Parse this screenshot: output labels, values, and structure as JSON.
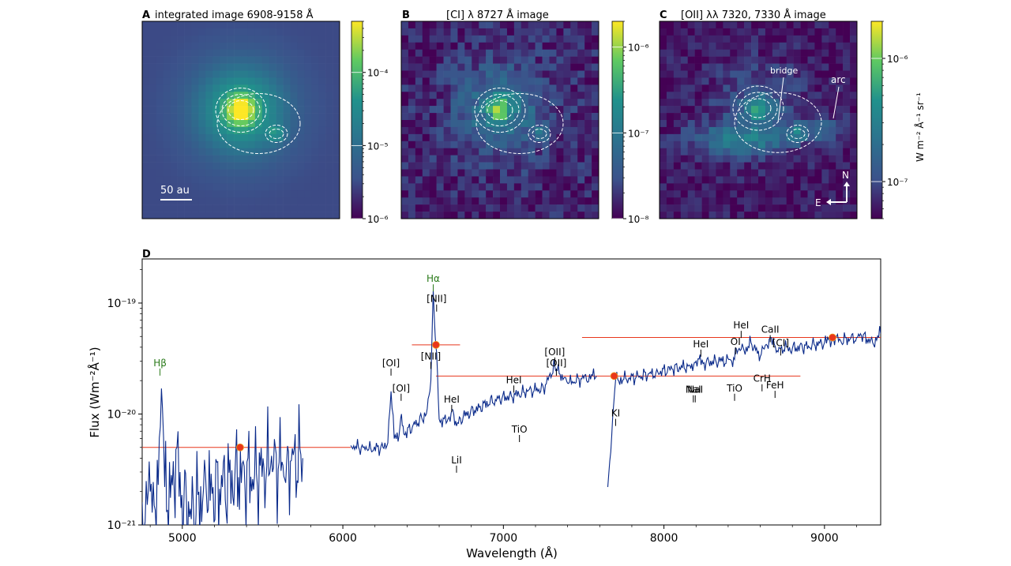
{
  "chart_data": [
    {
      "type": "heatmap",
      "panel_letter": "A",
      "title": "integrated image 6908-9158 Å",
      "colormap": "viridis",
      "colorbar": {
        "scale": "log",
        "range": [
          1e-06,
          0.0005
        ],
        "tick_labels": [
          "10⁻⁴",
          "10⁻⁵",
          "10⁻⁶"
        ],
        "tick_values": [
          0.0001,
          1e-05,
          1e-06
        ]
      },
      "sources": [
        {
          "name": "primary",
          "relative_peak": 1.0
        },
        {
          "name": "companion",
          "relative_peak": 0.8
        }
      ],
      "annotations": [
        "50 au"
      ]
    },
    {
      "type": "heatmap",
      "panel_letter": "B",
      "title": "[CI] λ 8727 Å image",
      "colormap": "viridis",
      "colorbar": {
        "scale": "log",
        "range": [
          1e-08,
          2e-06
        ],
        "tick_labels": [
          "10⁻⁶",
          "10⁻⁷",
          "10⁻⁸"
        ],
        "tick_values": [
          1e-06,
          1e-07,
          1e-08
        ]
      },
      "sources": [
        {
          "name": "primary",
          "relative_peak": 1.0
        },
        {
          "name": "companion",
          "relative_peak": 0.85
        }
      ]
    },
    {
      "type": "heatmap",
      "panel_letter": "C",
      "title": "[OII] λλ 7320, 7330 Å image",
      "colormap": "viridis",
      "colorbar": {
        "scale": "log",
        "range": [
          5e-08,
          2e-06
        ],
        "tick_labels": [
          "10⁻⁶",
          "10⁻⁷"
        ],
        "tick_values": [
          1e-06,
          1e-07
        ],
        "label": "W m⁻² Å⁻¹ sr⁻¹"
      },
      "sources": [
        {
          "name": "primary",
          "relative_peak": 1.0
        },
        {
          "name": "companion",
          "relative_peak": 0.85
        }
      ],
      "annotations": [
        "bridge",
        "arc"
      ],
      "compass": {
        "north": "N",
        "east": "E"
      }
    },
    {
      "type": "line",
      "panel_letter": "D",
      "xlabel": "Wavelength (Å)",
      "ylabel": "Flux (Wm⁻²Å⁻¹)",
      "xlim": [
        4750,
        9350
      ],
      "ylim": [
        1e-21,
        2.5e-19
      ],
      "yscale": "log",
      "x_ticks": [
        5000,
        6000,
        7000,
        8000,
        9000
      ],
      "x_tick_labels": [
        "5000",
        "6000",
        "7000",
        "8000",
        "9000"
      ],
      "y_ticks": [
        1e-21,
        1e-20,
        1e-19
      ],
      "y_tick_labels": [
        "10⁻²¹",
        "10⁻²⁰",
        "10⁻¹⁹"
      ],
      "series": [
        {
          "color": "#0a2a8a",
          "segments": [
            {
              "x": [
                4750,
                4800,
                4850,
                4870,
                4890,
                4950,
                4960,
                4980,
                5050,
                5150,
                5250,
                5350,
                5450,
                5550,
                5650,
                5750
              ],
              "y": [
                1.6e-21,
                2e-21,
                2.3e-21,
                1.7e-20,
                2.2e-21,
                1.9e-21,
                4.8e-21,
                1.8e-21,
                1.4e-21,
                1.9e-21,
                2.2e-21,
                2.7e-21,
                2.8e-21,
                3.4e-21,
                3.7e-21,
                4e-21
              ]
            },
            {
              "x": [
                6050,
                6150,
                6250,
                6280,
                6300,
                6320,
                6350,
                6365,
                6380,
                6450,
                6520,
                6548,
                6563,
                6575,
                6584,
                6600,
                6650,
                6680,
                6708,
                6750,
                6850,
                6950,
                7050,
                7150,
                7250,
                7320,
                7330,
                7400,
                7500,
                7580
              ],
              "y": [
                5.2e-21,
                4.8e-21,
                5e-21,
                5.5e-21,
                1.6e-20,
                6e-21,
                6.4e-21,
                1e-20,
                6.6e-21,
                8e-21,
                1e-20,
                2e-20,
                1.3e-19,
                5e-20,
                3.6e-20,
                9e-21,
                8.6e-21,
                1.1e-20,
                7.8e-21,
                9.5e-21,
                1.15e-20,
                1.35e-20,
                1.45e-20,
                1.6e-20,
                1.7e-20,
                2.7e-20,
                2.5e-20,
                1.9e-20,
                2.1e-20,
                2.2e-20
              ]
            },
            {
              "x": [
                7650,
                7700,
                7750,
                7850,
                7950,
                8050,
                8150,
                8185,
                8200,
                8250,
                8350,
                8440,
                8450,
                8500,
                8542,
                8600,
                8662,
                8700,
                8727,
                8800,
                8900,
                9000,
                9050,
                9100,
                9200,
                9230,
                9300,
                9350
              ],
              "y": [
                2.2e-21,
                2.1e-20,
                2.05e-20,
                2.2e-20,
                2.35e-20,
                2.55e-20,
                2.7e-20,
                2.75e-20,
                3e-20,
                2.9e-20,
                3e-20,
                3.1e-20,
                3.9e-20,
                3.7e-20,
                4.4e-20,
                3.3e-20,
                4.9e-20,
                3.6e-20,
                3.9e-20,
                3.9e-20,
                4.1e-20,
                4.4e-20,
                4.7e-20,
                4.6e-20,
                4.9e-20,
                5.1e-20,
                4.4e-20,
                5.3e-20
              ]
            }
          ]
        }
      ],
      "photometry": {
        "color": "#e8361c",
        "points": [
          {
            "x": 5360,
            "y": 5e-21,
            "xerr_low": 4750,
            "xerr_high": 6050
          },
          {
            "x": 6580,
            "y": 4.2e-20,
            "xerr_low": 6430,
            "xerr_high": 6730
          },
          {
            "x": 7690,
            "y": 2.2e-20,
            "xerr_low": 6580,
            "xerr_high": 8850
          },
          {
            "x": 9050,
            "y": 4.9e-20,
            "xerr_low": 7490,
            "xerr_high": 9350
          }
        ]
      },
      "line_labels": [
        {
          "text": "Hβ",
          "x": 4861,
          "y": 2.7e-20,
          "color": "#2a7a1a"
        },
        {
          "text": "Hα",
          "x": 6563,
          "y": 1.55e-19,
          "color": "#2a7a1a"
        },
        {
          "text": "[NII]",
          "x": 6584,
          "y": 1.02e-19,
          "color": "#000000"
        },
        {
          "text": "[NII]",
          "x": 6548,
          "y": 3.1e-20,
          "color": "#000000"
        },
        {
          "text": "[OI]",
          "x": 6300,
          "y": 2.7e-20,
          "color": "#000000"
        },
        {
          "text": "[OI]",
          "x": 6363,
          "y": 1.6e-20,
          "color": "#000000"
        },
        {
          "text": "HeI",
          "x": 6678,
          "y": 1.27e-20,
          "color": "#000000"
        },
        {
          "text": "LiI",
          "x": 6708,
          "y": 3.6e-21,
          "color": "#000000"
        },
        {
          "text": "HeI",
          "x": 7065,
          "y": 1.9e-20,
          "color": "#000000"
        },
        {
          "text": "TiO",
          "x": 7100,
          "y": 6.8e-21,
          "color": "#000000"
        },
        {
          "text": "[OII]",
          "x": 7320,
          "y": 3.4e-20,
          "color": "#000000"
        },
        {
          "text": "[OII]",
          "x": 7330,
          "y": 2.7e-20,
          "color": "#000000"
        },
        {
          "text": "KI",
          "x": 7699,
          "y": 9.5e-21,
          "color": "#000000"
        },
        {
          "text": "HeI",
          "x": 8230,
          "y": 4e-20,
          "color": "#000000"
        },
        {
          "text": "NaI",
          "x": 8183,
          "y": 1.55e-20,
          "color": "#000000"
        },
        {
          "text": "NaI",
          "x": 8195,
          "y": 1.55e-20,
          "color": "#000000"
        },
        {
          "text": "OI",
          "x": 8446,
          "y": 4.2e-20,
          "color": "#000000"
        },
        {
          "text": "HeI",
          "x": 8481,
          "y": 5.9e-20,
          "color": "#000000"
        },
        {
          "text": "TiO",
          "x": 8440,
          "y": 1.6e-20,
          "color": "#000000"
        },
        {
          "text": "CaII",
          "x": 8662,
          "y": 5.4e-20,
          "color": "#000000"
        },
        {
          "text": "[CI]",
          "x": 8727,
          "y": 4.1e-20,
          "color": "#000000"
        },
        {
          "text": "CrH",
          "x": 8611,
          "y": 1.95e-20,
          "color": "#000000"
        },
        {
          "text": "FeH",
          "x": 8692,
          "y": 1.7e-20,
          "color": "#000000"
        }
      ]
    }
  ]
}
